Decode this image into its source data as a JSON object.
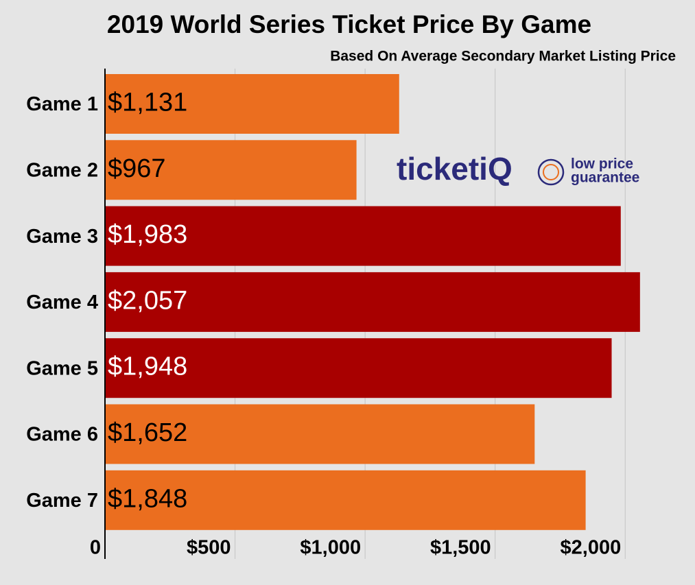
{
  "chart_data": {
    "type": "barh",
    "title": "2019 World Series Ticket Price By Game",
    "subtitle": "Based On Average Secondary Market Listing Price",
    "categories": [
      "Game 1",
      "Game 2",
      "Game 3",
      "Game 4",
      "Game 5",
      "Game 6",
      "Game 7"
    ],
    "values": [
      1131,
      967,
      1983,
      2057,
      1948,
      1652,
      1848
    ],
    "value_labels": [
      "$1,131",
      "$967",
      "$1,983",
      "$2,057",
      "$1,948",
      "$1,652",
      "$1,848"
    ],
    "colors": [
      "#eb6e1f",
      "#eb6e1f",
      "#a80000",
      "#a80000",
      "#a80000",
      "#eb6e1f",
      "#eb6e1f"
    ],
    "xlim": [
      0,
      2250
    ],
    "xticks": [
      0,
      {
        "value": 500,
        "label": "$500"
      },
      {
        "value": 1000,
        "label": "$1,000"
      },
      {
        "value": 1500,
        "label": "$1,500"
      },
      {
        "value": 2000,
        "label": "$2,000"
      }
    ],
    "grid": true
  },
  "logo": {
    "brand": "ticketiQ",
    "tagline": [
      "low price",
      "guarantee"
    ]
  }
}
